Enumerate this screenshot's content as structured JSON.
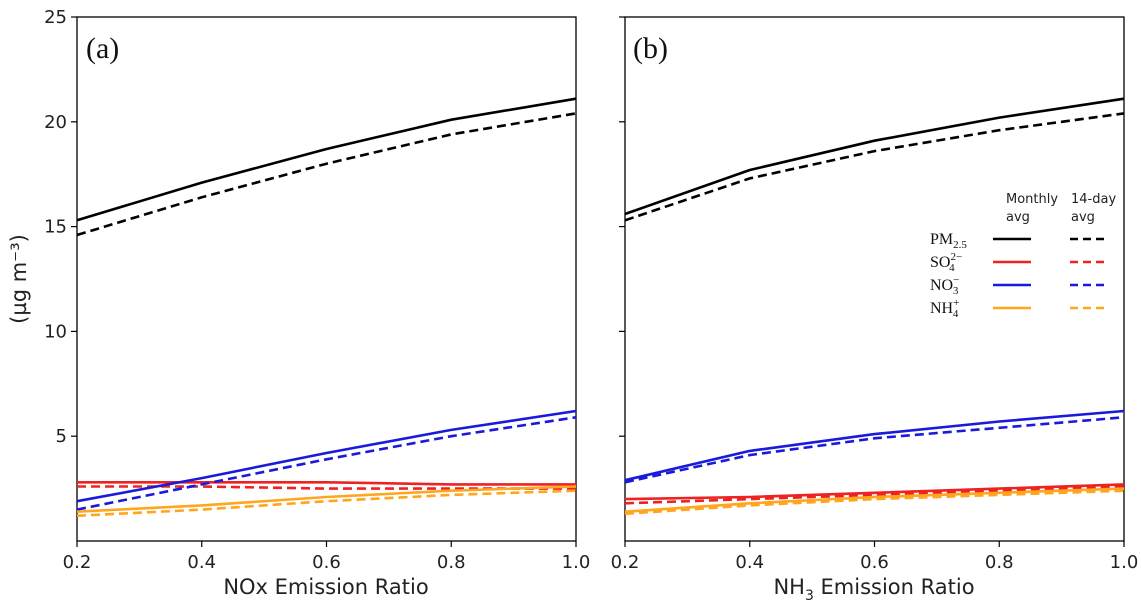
{
  "chart_data": [
    {
      "type": "line",
      "panel_label": "(a)",
      "xlabel": "NOx Emission Ratio",
      "ylabel": "(µg m⁻³)",
      "x": [
        0.2,
        0.4,
        0.6,
        0.8,
        1.0
      ],
      "xlim": [
        0.2,
        1.0
      ],
      "ylim": [
        0,
        25
      ],
      "xticks": [
        "0.2",
        "0.4",
        "0.6",
        "0.8",
        "1.0"
      ],
      "yticks": [
        "5",
        "10",
        "15",
        "20",
        "25"
      ],
      "series": [
        {
          "name": "PM2.5",
          "avg": "monthly",
          "color": "#000000",
          "dash": "solid",
          "values": [
            15.3,
            17.1,
            18.7,
            20.1,
            21.1
          ]
        },
        {
          "name": "PM2.5",
          "avg": "14-day",
          "color": "#000000",
          "dash": "dashed",
          "values": [
            14.6,
            16.4,
            18.0,
            19.4,
            20.4
          ]
        },
        {
          "name": "SO4 2-",
          "avg": "monthly",
          "color": "#ee2222",
          "dash": "solid",
          "values": [
            2.8,
            2.8,
            2.8,
            2.7,
            2.7
          ]
        },
        {
          "name": "SO4 2-",
          "avg": "14-day",
          "color": "#ee2222",
          "dash": "dashed",
          "values": [
            2.6,
            2.6,
            2.5,
            2.5,
            2.5
          ]
        },
        {
          "name": "NO3 -",
          "avg": "monthly",
          "color": "#1a1adc",
          "dash": "solid",
          "values": [
            1.9,
            3.0,
            4.2,
            5.3,
            6.2
          ]
        },
        {
          "name": "NO3 -",
          "avg": "14-day",
          "color": "#1a1adc",
          "dash": "dashed",
          "values": [
            1.5,
            2.7,
            3.9,
            5.0,
            5.9
          ]
        },
        {
          "name": "NH4 +",
          "avg": "monthly",
          "color": "#ffa51e",
          "dash": "solid",
          "values": [
            1.4,
            1.7,
            2.1,
            2.4,
            2.6
          ]
        },
        {
          "name": "NH4 +",
          "avg": "14-day",
          "color": "#ffa51e",
          "dash": "dashed",
          "values": [
            1.2,
            1.5,
            1.9,
            2.2,
            2.4
          ]
        }
      ]
    },
    {
      "type": "line",
      "panel_label": "(b)",
      "xlabel": "NH",
      "xlabel_sub": "3",
      "xlabel_rest": " Emission Ratio",
      "x": [
        0.2,
        0.4,
        0.6,
        0.8,
        1.0
      ],
      "xlim": [
        0.2,
        1.0
      ],
      "ylim": [
        0,
        25
      ],
      "xticks": [
        "0.2",
        "0.4",
        "0.6",
        "0.8",
        "1.0"
      ],
      "series": [
        {
          "name": "PM2.5",
          "avg": "monthly",
          "color": "#000000",
          "dash": "solid",
          "values": [
            15.6,
            17.7,
            19.1,
            20.2,
            21.1
          ]
        },
        {
          "name": "PM2.5",
          "avg": "14-day",
          "color": "#000000",
          "dash": "dashed",
          "values": [
            15.3,
            17.3,
            18.6,
            19.6,
            20.4
          ]
        },
        {
          "name": "SO4 2-",
          "avg": "monthly",
          "color": "#ee2222",
          "dash": "solid",
          "values": [
            2.0,
            2.1,
            2.3,
            2.5,
            2.7
          ]
        },
        {
          "name": "SO4 2-",
          "avg": "14-day",
          "color": "#ee2222",
          "dash": "dashed",
          "values": [
            1.8,
            2.0,
            2.2,
            2.4,
            2.6
          ]
        },
        {
          "name": "NO3 -",
          "avg": "monthly",
          "color": "#1a1adc",
          "dash": "solid",
          "values": [
            2.9,
            4.3,
            5.1,
            5.7,
            6.2
          ]
        },
        {
          "name": "NO3 -",
          "avg": "14-day",
          "color": "#1a1adc",
          "dash": "dashed",
          "values": [
            2.8,
            4.1,
            4.9,
            5.4,
            5.9
          ]
        },
        {
          "name": "NH4 +",
          "avg": "monthly",
          "color": "#ffa51e",
          "dash": "solid",
          "values": [
            1.4,
            1.8,
            2.1,
            2.3,
            2.5
          ]
        },
        {
          "name": "NH4 +",
          "avg": "14-day",
          "color": "#ffa51e",
          "dash": "dashed",
          "values": [
            1.3,
            1.7,
            2.0,
            2.2,
            2.4
          ]
        }
      ]
    }
  ],
  "legend": {
    "header_monthly_1": "Monthly",
    "header_monthly_2": "avg",
    "header_14day_1": "14-day",
    "header_14day_2": "avg",
    "entries": [
      {
        "base": "PM",
        "sub": "2.5",
        "sup": "",
        "color": "#000000"
      },
      {
        "base": "SO",
        "sub": "4",
        "sup": "2−",
        "color": "#ee2222"
      },
      {
        "base": "NO",
        "sub": "3",
        "sup": "−",
        "color": "#1a1adc"
      },
      {
        "base": "NH",
        "sub": "4",
        "sup": "+",
        "color": "#ffa51e"
      }
    ]
  }
}
